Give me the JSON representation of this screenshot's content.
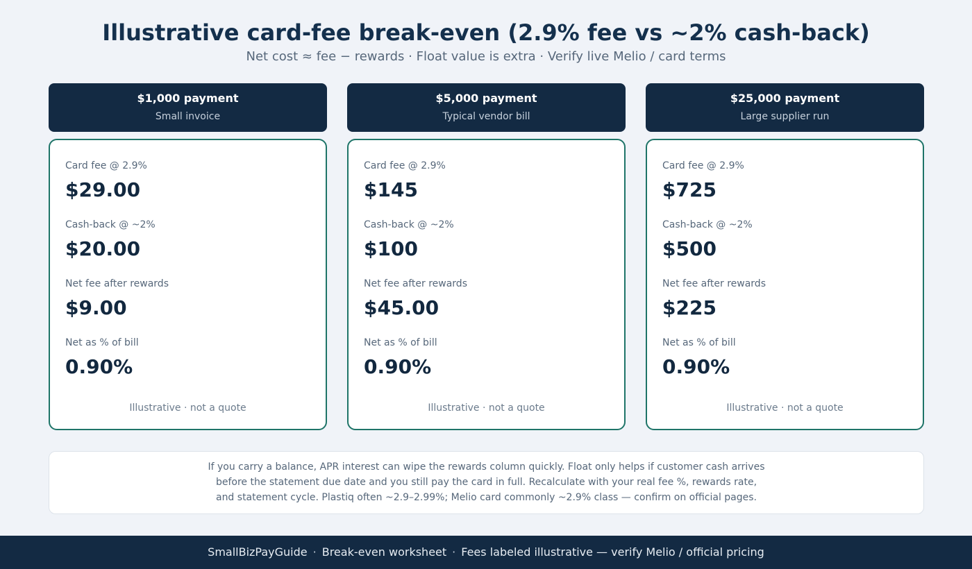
{
  "header": {
    "title": "Illustrative card-fee break-even (2.9% fee vs ~2% cash-back)",
    "subtitle": "Net cost ≈ fee − rewards · Float value is extra · Verify live Melio / card terms"
  },
  "columns": [
    {
      "amount": "$1,000 payment",
      "description": "Small invoice",
      "rows": [
        {
          "label": "Card fee @ 2.9%",
          "value": "$29.00"
        },
        {
          "label": "Cash-back @ ~2%",
          "value": "$20.00"
        },
        {
          "label": "Net fee after rewards",
          "value": "$9.00"
        },
        {
          "label": "Net as % of bill",
          "value": "0.90%"
        }
      ],
      "footnote": "Illustrative · not a quote"
    },
    {
      "amount": "$5,000 payment",
      "description": "Typical vendor bill",
      "rows": [
        {
          "label": "Card fee @ 2.9%",
          "value": "$145"
        },
        {
          "label": "Cash-back @ ~2%",
          "value": "$100"
        },
        {
          "label": "Net fee after rewards",
          "value": "$45.00"
        },
        {
          "label": "Net as % of bill",
          "value": "0.90%"
        }
      ],
      "footnote": "Illustrative · not a quote"
    },
    {
      "amount": "$25,000 payment",
      "description": "Large supplier run",
      "rows": [
        {
          "label": "Card fee @ 2.9%",
          "value": "$725"
        },
        {
          "label": "Cash-back @ ~2%",
          "value": "$500"
        },
        {
          "label": "Net fee after rewards",
          "value": "$225"
        },
        {
          "label": "Net as % of bill",
          "value": "0.90%"
        }
      ],
      "footnote": "Illustrative · not a quote"
    }
  ],
  "note": {
    "lines": [
      "If you carry a balance, APR interest can wipe the rewards column quickly. Float only helps if customer cash arrives",
      "before the statement due date and you still pay the card in full. Recalculate with your real fee %, rewards rate,",
      "and statement cycle. Plastiq often ~2.9–2.99%; Melio card commonly ~2.9% class — confirm on official pages."
    ]
  },
  "footer": {
    "brand": "SmallBizPayGuide",
    "separator": "·",
    "section": "Break-even worksheet",
    "disclaimer": "Fees labeled illustrative — verify Melio / official pricing"
  },
  "colors": {
    "navy": "#132a43",
    "teal_border": "#1e7468",
    "background": "#f0f3f8"
  }
}
